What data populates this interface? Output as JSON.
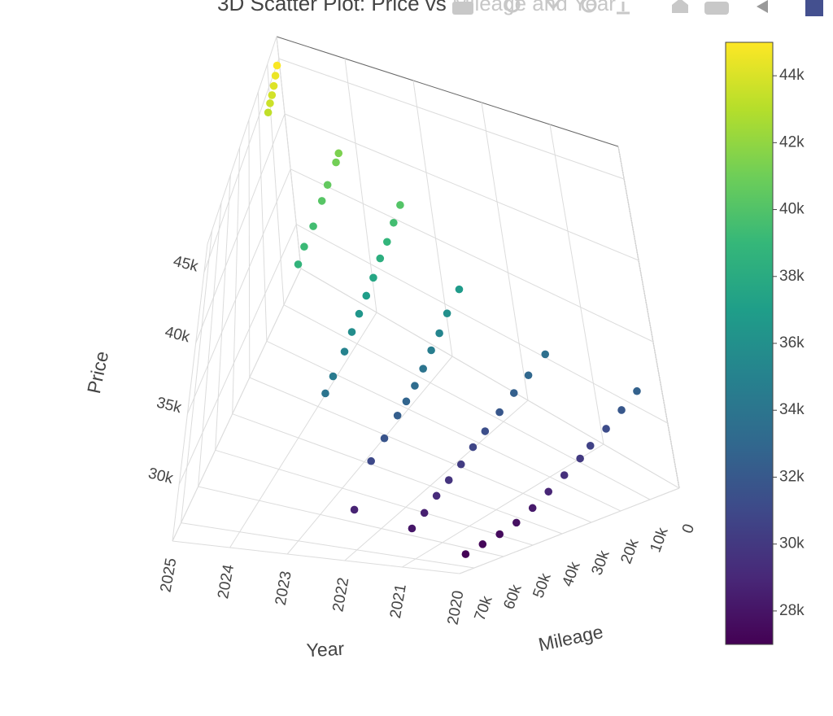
{
  "chart_data": {
    "type": "scatter3d",
    "title": "3D Scatter Plot: Price vs Mileage and Year",
    "x_label": "Year",
    "y_label": "Mileage",
    "z_label": "Price",
    "xlim": [
      2020,
      2025
    ],
    "xticks": [
      2020,
      2021,
      2022,
      2023,
      2024,
      2025
    ],
    "ylim": [
      0,
      75000
    ],
    "yticks": [
      0,
      {
        "value": 10000,
        "label": "10k"
      },
      {
        "value": 20000,
        "label": "20k"
      },
      {
        "value": 30000,
        "label": "30k"
      },
      {
        "value": 40000,
        "label": "40k"
      },
      {
        "value": 50000,
        "label": "50k"
      },
      {
        "value": 60000,
        "label": "60k"
      },
      {
        "value": 70000,
        "label": "70k"
      }
    ],
    "zlim": [
      26000,
      47000
    ],
    "zticks": [
      {
        "value": 30000,
        "label": "30k"
      },
      {
        "value": 35000,
        "label": "35k"
      },
      {
        "value": 40000,
        "label": "40k"
      },
      {
        "value": 45000,
        "label": "45k"
      }
    ],
    "colorbar_lim": [
      27000,
      45000
    ],
    "colorbar_ticks": [
      {
        "value": 28000,
        "label": "28k"
      },
      {
        "value": 30000,
        "label": "30k"
      },
      {
        "value": 32000,
        "label": "32k"
      },
      {
        "value": 34000,
        "label": "34k"
      },
      {
        "value": 36000,
        "label": "36k"
      },
      {
        "value": 38000,
        "label": "38k"
      },
      {
        "value": 40000,
        "label": "40k"
      },
      {
        "value": 42000,
        "label": "42k"
      },
      {
        "value": 44000,
        "label": "44k"
      }
    ],
    "colorscale": [
      "#440154",
      "#482878",
      "#3e4989",
      "#31688e",
      "#26828e",
      "#1f9e89",
      "#35b779",
      "#6ece58",
      "#b5de2b",
      "#fde725"
    ],
    "grid": true,
    "x": [
      2025,
      2025,
      2025,
      2025,
      2025,
      2025,
      2024,
      2024,
      2024,
      2024,
      2024,
      2024,
      2024,
      2023,
      2023,
      2023,
      2023,
      2023,
      2023,
      2023,
      2023,
      2023,
      2023,
      2023,
      2022,
      2022,
      2022,
      2022,
      2022,
      2022,
      2022,
      2022,
      2022,
      2022,
      2022,
      2021,
      2021,
      2021,
      2021,
      2021,
      2021,
      2021,
      2021,
      2021,
      2021,
      2021,
      2020,
      2020,
      2020,
      2020,
      2020,
      2020,
      2020,
      2020,
      2020,
      2020,
      2020,
      2020
    ],
    "y": [
      2000,
      4000,
      6000,
      8000,
      10000,
      12000,
      10000,
      12000,
      18000,
      22000,
      28000,
      34000,
      38000,
      14000,
      18000,
      22000,
      26000,
      30000,
      34000,
      38000,
      42000,
      46000,
      52000,
      56000,
      20000,
      26000,
      30000,
      34000,
      38000,
      42000,
      46000,
      50000,
      56000,
      62000,
      70000,
      15000,
      22000,
      28000,
      34000,
      40000,
      45000,
      50000,
      55000,
      60000,
      65000,
      70000,
      8000,
      14000,
      20000,
      26000,
      30000,
      36000,
      42000,
      48000,
      54000,
      60000,
      66000,
      72000
    ],
    "z": [
      44900,
      44500,
      44100,
      43800,
      43600,
      43300,
      41400,
      41100,
      40600,
      40200,
      39500,
      39200,
      38700,
      40100,
      39500,
      38800,
      38300,
      37600,
      37000,
      36400,
      35800,
      35100,
      34400,
      33900,
      36800,
      36000,
      35200,
      34600,
      33900,
      33300,
      32800,
      32400,
      31700,
      31000,
      28800,
      33600,
      33000,
      32500,
      31900,
      31300,
      30800,
      30200,
      29700,
      29200,
      28600,
      28100,
      32600,
      31900,
      31200,
      30600,
      30100,
      29500,
      28900,
      28300,
      27800,
      27500,
      27300,
      27100
    ]
  }
}
